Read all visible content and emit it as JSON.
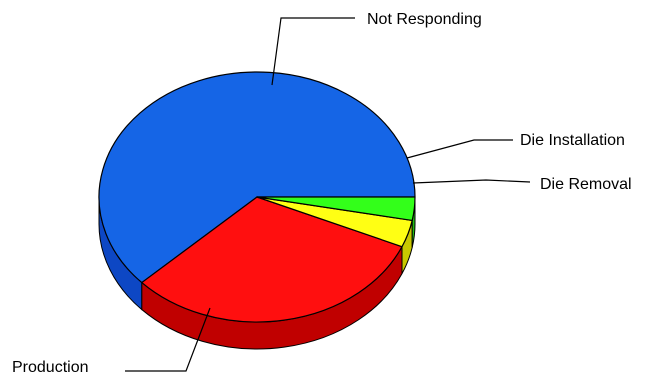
{
  "chart_data": {
    "type": "pie",
    "title": "",
    "style": "3d",
    "legend": "none",
    "labels_position": "outside-with-leader-lines",
    "slices": [
      {
        "label": "Production",
        "value": 62.0,
        "color": "#1565e6",
        "side_color": "#0d47c4"
      },
      {
        "label": "Not Responding",
        "value": 31.5,
        "color": "#ff0f0f",
        "side_color": "#c00000"
      },
      {
        "label": "Die Installation",
        "value": 3.5,
        "color": "#ffff14",
        "side_color": "#c8c800"
      },
      {
        "label": "Die Removal",
        "value": 3.0,
        "color": "#33ff1a",
        "side_color": "#22bb11"
      }
    ]
  }
}
